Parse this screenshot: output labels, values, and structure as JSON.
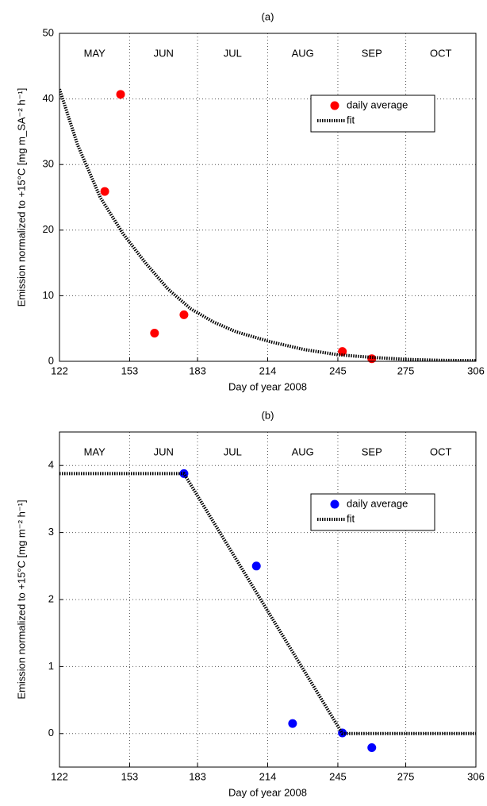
{
  "chart_data": [
    {
      "type": "scatter",
      "title": "(a)",
      "xlabel": "Day of year 2008",
      "ylabel": "Emission normalized to +15°C [mg m_SA⁻² h⁻¹]",
      "month_labels": [
        "MAY",
        "JUN",
        "JUL",
        "AUG",
        "SEP",
        "OCT"
      ],
      "xlim": [
        122,
        306
      ],
      "xticks": [
        122,
        153,
        183,
        214,
        245,
        275,
        306
      ],
      "ylim": [
        0,
        50
      ],
      "yticks": [
        0,
        10,
        20,
        30,
        40,
        50
      ],
      "grid": true,
      "legend": "upper right",
      "series": [
        {
          "name": "daily average",
          "color": "#ff0000",
          "style": "marker",
          "x": [
            142,
            149,
            164,
            177,
            247,
            260
          ],
          "values": [
            25.9,
            40.7,
            4.3,
            7.1,
            1.5,
            0.4
          ]
        },
        {
          "name": "fit",
          "color": "#000000",
          "style": "dotted",
          "x": [
            122,
            130,
            140,
            150,
            160,
            170,
            180,
            190,
            200,
            215,
            230,
            245,
            260,
            275,
            290,
            306
          ],
          "values": [
            41.5,
            33,
            25,
            19.5,
            15,
            11,
            8,
            6,
            4.5,
            3,
            1.8,
            1.0,
            0.6,
            0.3,
            0.15,
            0.1
          ]
        }
      ]
    },
    {
      "type": "scatter",
      "title": "(b)",
      "xlabel": "Day of year 2008",
      "ylabel": "Emission normalized to +15°C [mg m⁻² h⁻¹]",
      "month_labels": [
        "MAY",
        "JUN",
        "JUL",
        "AUG",
        "SEP",
        "OCT"
      ],
      "xlim": [
        122,
        306
      ],
      "xticks": [
        122,
        153,
        183,
        214,
        245,
        275,
        306
      ],
      "ylim": [
        -0.5,
        4.5
      ],
      "yticks": [
        0,
        1,
        2,
        3,
        4
      ],
      "grid": true,
      "legend": "upper right",
      "series": [
        {
          "name": "daily average",
          "color": "#0000ff",
          "style": "marker",
          "x": [
            177,
            209,
            225,
            247,
            260
          ],
          "values": [
            3.88,
            2.5,
            0.15,
            0.01,
            -0.21
          ]
        },
        {
          "name": "fit",
          "color": "#000000",
          "style": "dotted",
          "x": [
            122,
            177,
            247,
            306
          ],
          "values": [
            3.88,
            3.88,
            0,
            0
          ]
        }
      ]
    }
  ]
}
